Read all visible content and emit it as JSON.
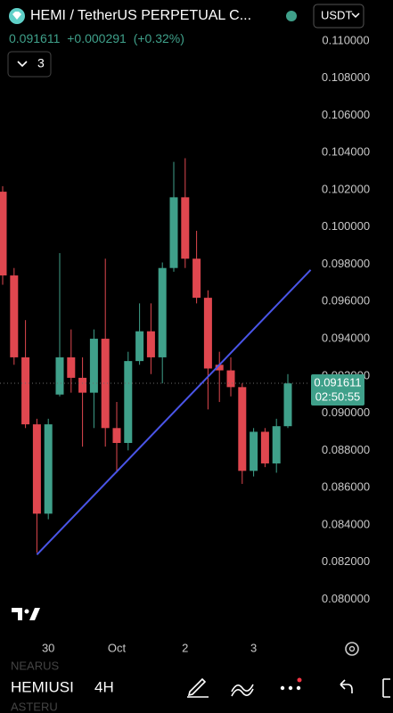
{
  "header": {
    "symbol_title": "HEMI / TetherUS PERPETUAL C...",
    "quote": "USDT",
    "last": "0.091611",
    "change": "+0.000291",
    "change_pct": "(+0.32%)",
    "indicator_count": "3"
  },
  "chart_data": {
    "type": "candlestick",
    "up_color": "#3fa08a",
    "down_color": "#e0474f",
    "candles": [
      {
        "open": 0.1019,
        "high": 0.1022,
        "low": 0.0969,
        "close": 0.0974
      },
      {
        "open": 0.0974,
        "high": 0.0978,
        "low": 0.0926,
        "close": 0.093
      },
      {
        "open": 0.093,
        "high": 0.095,
        "low": 0.0892,
        "close": 0.0894
      },
      {
        "open": 0.0894,
        "high": 0.0897,
        "low": 0.0825,
        "close": 0.0846
      },
      {
        "open": 0.0846,
        "high": 0.0897,
        "low": 0.0843,
        "close": 0.0894
      },
      {
        "open": 0.091,
        "high": 0.0986,
        "low": 0.0909,
        "close": 0.093
      },
      {
        "open": 0.093,
        "high": 0.0945,
        "low": 0.0911,
        "close": 0.0919
      },
      {
        "open": 0.0919,
        "high": 0.093,
        "low": 0.0882,
        "close": 0.0911
      },
      {
        "open": 0.0911,
        "high": 0.0945,
        "low": 0.0892,
        "close": 0.094
      },
      {
        "open": 0.094,
        "high": 0.0983,
        "low": 0.0882,
        "close": 0.0892
      },
      {
        "open": 0.0892,
        "high": 0.0906,
        "low": 0.0868,
        "close": 0.0884
      },
      {
        "open": 0.0884,
        "high": 0.0933,
        "low": 0.088,
        "close": 0.0928
      },
      {
        "open": 0.0928,
        "high": 0.0959,
        "low": 0.0926,
        "close": 0.0944
      },
      {
        "open": 0.0944,
        "high": 0.0959,
        "low": 0.0921,
        "close": 0.093
      },
      {
        "open": 0.093,
        "high": 0.0981,
        "low": 0.0916,
        "close": 0.0978
      },
      {
        "open": 0.0978,
        "high": 0.1035,
        "low": 0.0976,
        "close": 0.1016
      },
      {
        "open": 0.1016,
        "high": 0.1037,
        "low": 0.0978,
        "close": 0.0983
      },
      {
        "open": 0.0983,
        "high": 0.0998,
        "low": 0.0959,
        "close": 0.0962
      },
      {
        "open": 0.0962,
        "high": 0.0966,
        "low": 0.0902,
        "close": 0.0924
      },
      {
        "open": 0.0926,
        "high": 0.0933,
        "low": 0.0906,
        "close": 0.0923
      },
      {
        "open": 0.0923,
        "high": 0.093,
        "low": 0.0909,
        "close": 0.0914
      },
      {
        "open": 0.0914,
        "high": 0.0916,
        "low": 0.0862,
        "close": 0.0869
      },
      {
        "open": 0.0869,
        "high": 0.0892,
        "low": 0.0866,
        "close": 0.089
      },
      {
        "open": 0.089,
        "high": 0.0892,
        "low": 0.0871,
        "close": 0.0873
      },
      {
        "open": 0.0873,
        "high": 0.0897,
        "low": 0.0868,
        "close": 0.0893
      },
      {
        "open": 0.0893,
        "high": 0.0921,
        "low": 0.0892,
        "close": 0.0916
      }
    ],
    "trendline": {
      "x": [
        3,
        27
      ],
      "y": [
        0.0824,
        0.0977
      ],
      "color": "#4a55e8"
    },
    "last_price": {
      "value": 0.091611,
      "label": "0.091611"
    },
    "countdown": "02:50:55",
    "ylim": [
      0.0782,
      0.1122
    ],
    "yticks": [
      {
        "value": 0.11,
        "label": "0.110000"
      },
      {
        "value": 0.108,
        "label": "0.108000"
      },
      {
        "value": 0.106,
        "label": "0.106000"
      },
      {
        "value": 0.104,
        "label": "0.104000"
      },
      {
        "value": 0.102,
        "label": "0.102000"
      },
      {
        "value": 0.1,
        "label": "0.100000"
      },
      {
        "value": 0.098,
        "label": "0.098000"
      },
      {
        "value": 0.096,
        "label": "0.096000"
      },
      {
        "value": 0.094,
        "label": "0.094000"
      },
      {
        "value": 0.092,
        "label": "0.092000"
      },
      {
        "value": 0.09,
        "label": "0.090000"
      },
      {
        "value": 0.088,
        "label": "0.088000"
      },
      {
        "value": 0.086,
        "label": "0.086000"
      },
      {
        "value": 0.084,
        "label": "0.084000"
      },
      {
        "value": 0.082,
        "label": "0.082000"
      },
      {
        "value": 0.08,
        "label": "0.080000"
      }
    ],
    "xticks": [
      {
        "value": 4,
        "label": "30"
      },
      {
        "value": 10,
        "label": "Oct"
      },
      {
        "value": 16,
        "label": "2"
      },
      {
        "value": 22,
        "label": "3"
      }
    ]
  },
  "footer": {
    "prev_symbol": "NEARUS",
    "symbol": "HEMIUSI",
    "next_symbol": "ASTERU",
    "interval": "4H"
  }
}
